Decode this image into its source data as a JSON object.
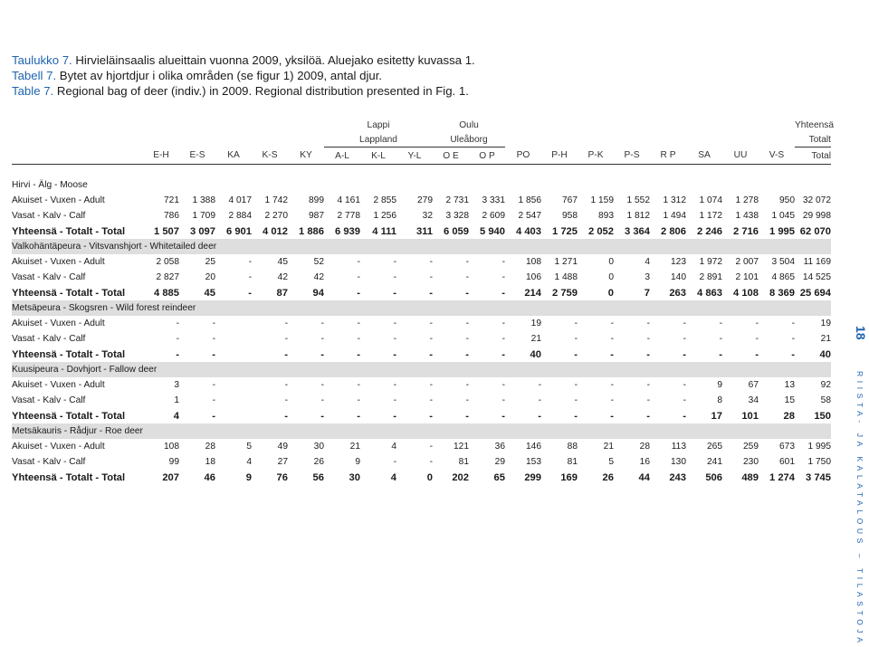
{
  "captions": [
    {
      "number": "Taulukko 7.",
      "text": "Hirvieläinsaalis alueittain vuonna 2009, yksilöä. Aluejako esitetty kuvassa 1."
    },
    {
      "number": "Tabell 7.",
      "text": "Bytet av hjortdjur i olika områden (se figur 1) 2009, antal djur."
    },
    {
      "number": "Table 7.",
      "text": "Regional bag of deer (indiv.) in 2009. Regional distribution presented in Fig. 1."
    }
  ],
  "page_number": "18",
  "side_text": "RIISTA- JA KALATALOUS – TILASTOJA",
  "group_headers": {
    "lappi": "Lappi",
    "lappland": "Lappland",
    "oulu": "Oulu",
    "uleaborg": "Uleåborg",
    "yhteensa": "Yhteensä",
    "totalt": "Totalt"
  },
  "columns": [
    "E-H",
    "E-S",
    "KA",
    "K-S",
    "KY",
    "A-L",
    "K-L",
    "Y-L",
    "O E",
    "O P",
    "PO",
    "P-H",
    "P-K",
    "P-S",
    "R P",
    "SA",
    "UU",
    "V-S",
    "Total"
  ],
  "sections": [
    {
      "title": "Hirvi - Älg - Moose",
      "rows": [
        {
          "label": "Akuiset - Vuxen - Adult",
          "values": [
            "721",
            "1 388",
            "4 017",
            "1 742",
            "899",
            "4 161",
            "2 855",
            "279",
            "2 731",
            "3 331",
            "1 856",
            "767",
            "1 159",
            "1 552",
            "1 312",
            "1 074",
            "1 278",
            "950",
            "32 072"
          ]
        },
        {
          "label": "Vasat - Kalv - Calf",
          "values": [
            "786",
            "1 709",
            "2 884",
            "2 270",
            "987",
            "2 778",
            "1 256",
            "32",
            "3 328",
            "2 609",
            "2 547",
            "958",
            "893",
            "1 812",
            "1 494",
            "1 172",
            "1 438",
            "1 045",
            "29 998"
          ]
        },
        {
          "label": "Yhteensä - Totalt - Total",
          "values": [
            "1 507",
            "3 097",
            "6 901",
            "4 012",
            "1 886",
            "6 939",
            "4 111",
            "311",
            "6 059",
            "5 940",
            "4 403",
            "1 725",
            "2 052",
            "3 364",
            "2 806",
            "2 246",
            "2 716",
            "1 995",
            "62 070"
          ]
        }
      ]
    },
    {
      "title": "Valkohäntäpeura - Vitsvanshjort - Whitetailed deer",
      "rows": [
        {
          "label": "Akuiset - Vuxen - Adult",
          "values": [
            "2 058",
            "25",
            "-",
            "45",
            "52",
            "-",
            "-",
            "-",
            "-",
            "-",
            "108",
            "1 271",
            "0",
            "4",
            "123",
            "1 972",
            "2 007",
            "3 504",
            "11 169"
          ]
        },
        {
          "label": "Vasat - Kalv - Calf",
          "values": [
            "2 827",
            "20",
            "-",
            "42",
            "42",
            "-",
            "-",
            "-",
            "-",
            "-",
            "106",
            "1 488",
            "0",
            "3",
            "140",
            "2 891",
            "2 101",
            "4 865",
            "14 525"
          ]
        },
        {
          "label": "Yhteensä - Totalt - Total",
          "values": [
            "4 885",
            "45",
            "-",
            "87",
            "94",
            "-",
            "-",
            "-",
            "-",
            "-",
            "214",
            "2 759",
            "0",
            "7",
            "263",
            "4 863",
            "4 108",
            "8 369",
            "25 694"
          ]
        }
      ]
    },
    {
      "title": "Metsäpeura - Skogsren - Wild forest reindeer",
      "rows": [
        {
          "label": "Akuiset - Vuxen - Adult",
          "values": [
            "-",
            "-",
            "",
            "-",
            "-",
            "-",
            "-",
            "-",
            "-",
            "-",
            "19",
            "-",
            "-",
            "-",
            "-",
            "-",
            "-",
            "-",
            "19"
          ]
        },
        {
          "label": "Vasat - Kalv - Calf",
          "values": [
            "-",
            "-",
            "",
            "-",
            "-",
            "-",
            "-",
            "-",
            "-",
            "-",
            "21",
            "-",
            "-",
            "-",
            "-",
            "-",
            "-",
            "-",
            "21"
          ]
        },
        {
          "label": "Yhteensä - Totalt - Total",
          "values": [
            "-",
            "-",
            "",
            "-",
            "-",
            "-",
            "-",
            "-",
            "-",
            "-",
            "40",
            "-",
            "-",
            "-",
            "-",
            "-",
            "-",
            "-",
            "40"
          ]
        }
      ]
    },
    {
      "title": "Kuusipeura - Dovhjort - Fallow deer",
      "rows": [
        {
          "label": "Akuiset - Vuxen - Adult",
          "values": [
            "3",
            "-",
            "",
            "-",
            "-",
            "-",
            "-",
            "-",
            "-",
            "-",
            "-",
            "-",
            "-",
            "-",
            "-",
            "9",
            "67",
            "13",
            "92"
          ]
        },
        {
          "label": "Vasat - Kalv - Calf",
          "values": [
            "1",
            "-",
            "",
            "-",
            "-",
            "-",
            "-",
            "-",
            "-",
            "-",
            "-",
            "-",
            "-",
            "-",
            "-",
            "8",
            "34",
            "15",
            "58"
          ]
        },
        {
          "label": "Yhteensä - Totalt - Total",
          "values": [
            "4",
            "-",
            "",
            "-",
            "-",
            "-",
            "-",
            "-",
            "-",
            "-",
            "-",
            "-",
            "-",
            "-",
            "-",
            "17",
            "101",
            "28",
            "150"
          ]
        }
      ]
    },
    {
      "title": "Metsäkauris - Rådjur - Roe deer",
      "rows": [
        {
          "label": "Akuiset - Vuxen - Adult",
          "values": [
            "108",
            "28",
            "5",
            "49",
            "30",
            "21",
            "4",
            "-",
            "121",
            "36",
            "146",
            "88",
            "21",
            "28",
            "113",
            "265",
            "259",
            "673",
            "1 995"
          ]
        },
        {
          "label": "Vasat - Kalv - Calf",
          "values": [
            "99",
            "18",
            "4",
            "27",
            "26",
            "9",
            "-",
            "-",
            "81",
            "29",
            "153",
            "81",
            "5",
            "16",
            "130",
            "241",
            "230",
            "601",
            "1 750"
          ]
        },
        {
          "label": "Yhteensä - Totalt - Total",
          "values": [
            "207",
            "46",
            "9",
            "76",
            "56",
            "30",
            "4",
            "0",
            "202",
            "65",
            "299",
            "169",
            "26",
            "44",
            "243",
            "506",
            "489",
            "1 274",
            "3 745"
          ]
        }
      ]
    }
  ]
}
